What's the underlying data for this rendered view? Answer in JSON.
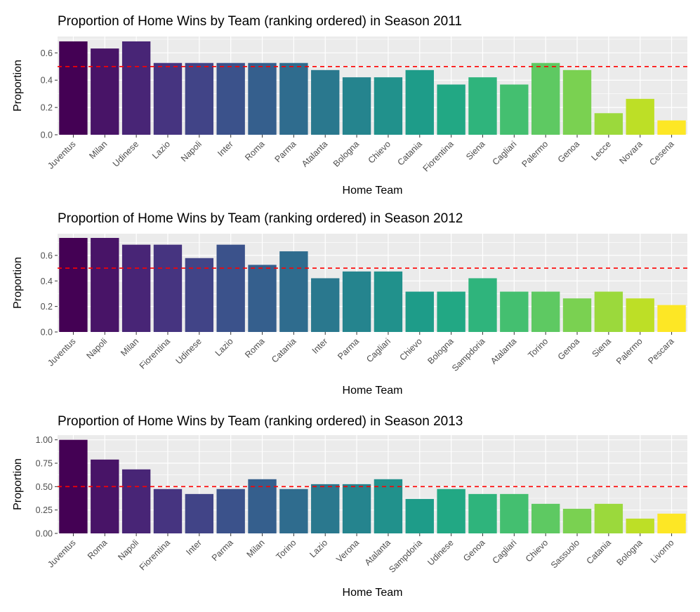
{
  "chart_data": [
    {
      "type": "bar",
      "title": "Proportion of Home Wins by Team (ranking ordered) in Season 2011",
      "xlabel": "Home Team",
      "ylabel": "Proportion",
      "ylim": [
        0,
        0.72
      ],
      "yticks": [
        0.0,
        0.2,
        0.4,
        0.6
      ],
      "ytick_labels": [
        "0.0",
        "0.2",
        "0.4",
        "0.6"
      ],
      "reference_line": 0.5,
      "grid": true,
      "categories": [
        "Juventus",
        "Milan",
        "Udinese",
        "Lazio",
        "Napoli",
        "Inter",
        "Roma",
        "Parma",
        "Atalanta",
        "Bologna",
        "Chievo",
        "Catania",
        "Fiorentina",
        "Siena",
        "Cagliari",
        "Palermo",
        "Genoa",
        "Lecce",
        "Novara",
        "Cesena"
      ],
      "values": [
        0.684,
        0.632,
        0.684,
        0.526,
        0.526,
        0.526,
        0.526,
        0.526,
        0.474,
        0.421,
        0.421,
        0.474,
        0.368,
        0.421,
        0.368,
        0.526,
        0.474,
        0.158,
        0.263,
        0.105
      ]
    },
    {
      "type": "bar",
      "title": "Proportion of Home Wins by Team (ranking ordered) in Season 2012",
      "xlabel": "Home Team",
      "ylabel": "Proportion",
      "ylim": [
        0,
        0.77
      ],
      "yticks": [
        0.0,
        0.2,
        0.4,
        0.6
      ],
      "ytick_labels": [
        "0.0",
        "0.2",
        "0.4",
        "0.6"
      ],
      "reference_line": 0.5,
      "grid": true,
      "categories": [
        "Juventus",
        "Napoli",
        "Milan",
        "Fiorentina",
        "Udinese",
        "Lazio",
        "Roma",
        "Catania",
        "Inter",
        "Parma",
        "Cagliari",
        "Chievo",
        "Bologna",
        "Sampdoria",
        "Atalanta",
        "Torino",
        "Genoa",
        "Siena",
        "Palermo",
        "Pescara"
      ],
      "values": [
        0.737,
        0.737,
        0.684,
        0.684,
        0.579,
        0.684,
        0.526,
        0.632,
        0.421,
        0.474,
        0.474,
        0.316,
        0.316,
        0.421,
        0.316,
        0.316,
        0.263,
        0.316,
        0.263,
        0.211
      ]
    },
    {
      "type": "bar",
      "title": "Proportion of Home Wins by Team (ranking ordered) in Season 2013",
      "xlabel": "Home Team",
      "ylabel": "Proportion",
      "ylim": [
        0,
        1.05
      ],
      "yticks": [
        0.0,
        0.25,
        0.5,
        0.75,
        1.0
      ],
      "ytick_labels": [
        "0.00",
        "0.25",
        "0.50",
        "0.75",
        "1.00"
      ],
      "reference_line": 0.5,
      "grid": true,
      "categories": [
        "Juventus",
        "Roma",
        "Napoli",
        "Fiorentina",
        "Inter",
        "Parma",
        "Milan",
        "Torino",
        "Lazio",
        "Verona",
        "Atalanta",
        "Sampdoria",
        "Udinese",
        "Genoa",
        "Cagliari",
        "Chievo",
        "Sassuolo",
        "Catania",
        "Bologna",
        "Livorno"
      ],
      "values": [
        1.0,
        0.789,
        0.684,
        0.474,
        0.421,
        0.474,
        0.579,
        0.474,
        0.526,
        0.526,
        0.579,
        0.368,
        0.474,
        0.421,
        0.421,
        0.316,
        0.263,
        0.316,
        0.158,
        0.211
      ]
    }
  ],
  "colors": {
    "panel_background": "#ebebeb",
    "grid": "#ffffff",
    "reference_line": "#ff0000",
    "bar_palette": [
      "#440154",
      "#481467",
      "#482576",
      "#463480",
      "#414487",
      "#3b528b",
      "#355f8d",
      "#2f6c8e",
      "#2a788e",
      "#25848e",
      "#21918c",
      "#1e9c89",
      "#22a884",
      "#2fb47c",
      "#44bf70",
      "#5ec962",
      "#7ad151",
      "#9bd93c",
      "#bddf26",
      "#fde725"
    ]
  }
}
